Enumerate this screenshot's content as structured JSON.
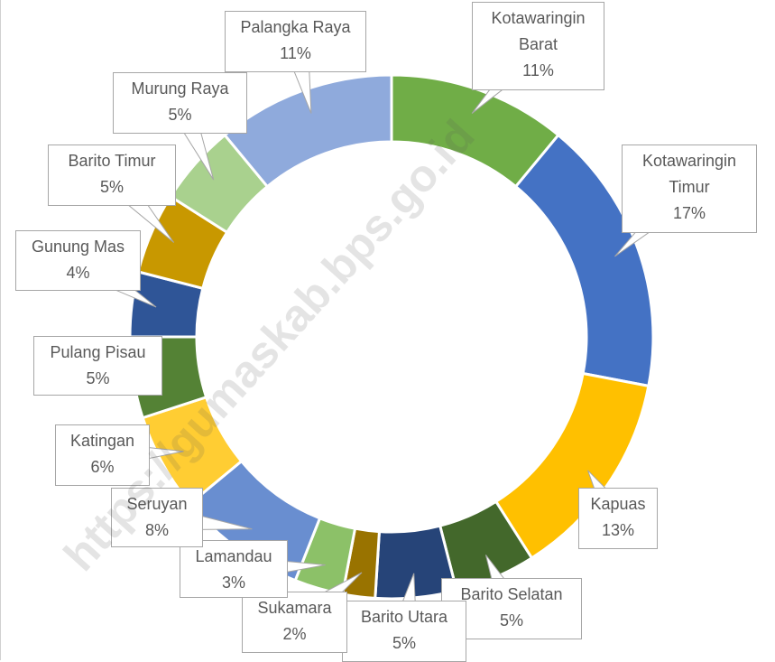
{
  "chart_data": {
    "type": "pie",
    "categories": [
      "Kotawaringin Barat",
      "Kotawaringin Timur",
      "Kapuas",
      "Barito Selatan",
      "Barito Utara",
      "Sukamara",
      "Lamandau",
      "Seruyan",
      "Katingan",
      "Pulang Pisau",
      "Gunung Mas",
      "Barito Timur",
      "Murung Raya",
      "Palangka Raya"
    ],
    "values": [
      11,
      17,
      13,
      5,
      5,
      2,
      3,
      8,
      6,
      5,
      4,
      5,
      5,
      11
    ],
    "value_labels": [
      "11%",
      "17%",
      "13%",
      "5%",
      "5%",
      "2%",
      "3%",
      "8%",
      "6%",
      "5%",
      "4%",
      "5%",
      "5%",
      "11%"
    ],
    "colors": [
      "#70ad47",
      "#4472c4",
      "#ffc000",
      "#43682b",
      "#264478",
      "#997300",
      "#8cc168",
      "#698ed0",
      "#ffcd33",
      "#548235",
      "#2f5597",
      "#c89800",
      "#a9d18e",
      "#8faadc"
    ],
    "donut": true,
    "watermark": "https://gumaskab.bps.go.id"
  }
}
